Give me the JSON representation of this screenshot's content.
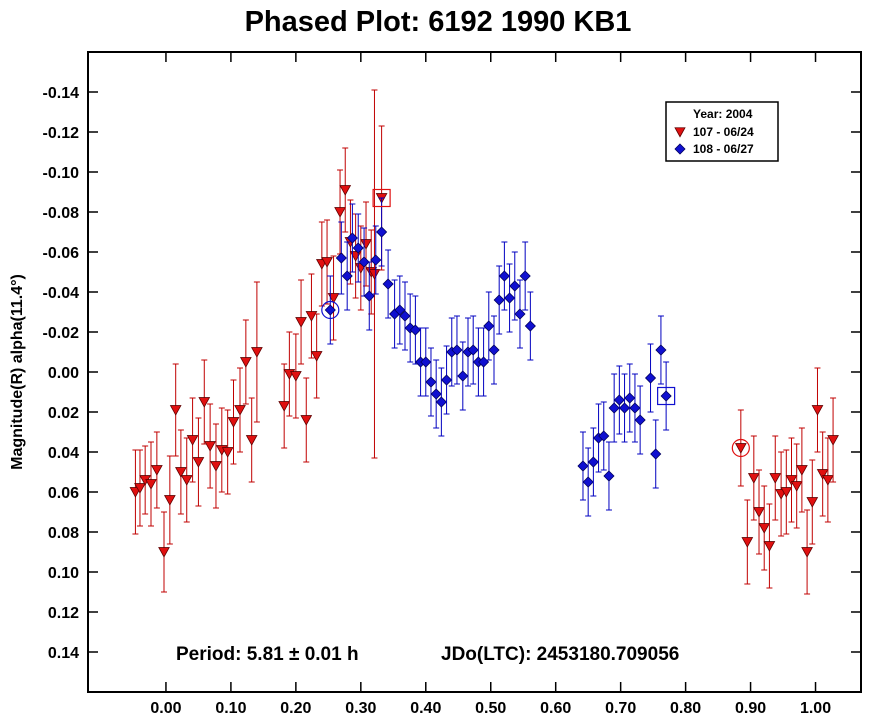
{
  "chart_data": {
    "type": "scatter",
    "title": "Phased Plot: 6192 1990 KB1",
    "xlabel": "",
    "ylabel": "Magnitude(R) alpha(11.4°)",
    "xlim": [
      -0.12,
      1.07
    ],
    "ylim": [
      0.16,
      -0.16
    ],
    "y_inverted": true,
    "x_ticks": [
      0.0,
      0.1,
      0.2,
      0.3,
      0.4,
      0.5,
      0.6,
      0.7,
      0.8,
      0.9,
      1.0
    ],
    "x_tick_labels": [
      "0.00",
      "0.10",
      "0.20",
      "0.30",
      "0.40",
      "0.50",
      "0.60",
      "0.70",
      "0.80",
      "0.90",
      "1.00"
    ],
    "y_ticks": [
      -0.14,
      -0.12,
      -0.1,
      -0.08,
      -0.06,
      -0.04,
      -0.02,
      0.0,
      0.02,
      0.04,
      0.06,
      0.08,
      0.1,
      0.12,
      0.14
    ],
    "y_tick_labels": [
      "-0.14",
      "-0.12",
      "-0.10",
      "-0.08",
      "-0.06",
      "-0.04",
      "-0.02",
      "0.00",
      "0.02",
      "0.04",
      "0.06",
      "0.08",
      "0.10",
      "0.12",
      "0.14"
    ],
    "grid": false,
    "legend": {
      "position": "top-right",
      "title": "Year: 2004",
      "entries": [
        "107 - 06/24",
        "108 - 06/27"
      ]
    },
    "annotations": {
      "period": "Period: 5.81 ± 0.01 h",
      "epoch": "JDo(LTC): 2453180.709056"
    },
    "colors": {
      "series1": "#e01010",
      "series2": "#1010d0",
      "errbar1": "#c00000",
      "errbar2": "#0000c0"
    },
    "series": [
      {
        "name": "107 - 06/24",
        "marker": "triangle-down",
        "points": [
          {
            "x": -0.047,
            "y": 0.06,
            "e": 0.021
          },
          {
            "x": -0.04,
            "y": 0.058,
            "e": 0.019
          },
          {
            "x": -0.032,
            "y": 0.054,
            "e": 0.017
          },
          {
            "x": -0.023,
            "y": 0.056,
            "e": 0.021
          },
          {
            "x": -0.014,
            "y": 0.049,
            "e": 0.019
          },
          {
            "x": -0.003,
            "y": 0.09,
            "e": 0.02
          },
          {
            "x": 0.006,
            "y": 0.064,
            "e": 0.022
          },
          {
            "x": 0.015,
            "y": 0.019,
            "e": 0.023
          },
          {
            "x": 0.023,
            "y": 0.05,
            "e": 0.021
          },
          {
            "x": 0.032,
            "y": 0.054,
            "e": 0.021
          },
          {
            "x": 0.041,
            "y": 0.034,
            "e": 0.021
          },
          {
            "x": 0.05,
            "y": 0.045,
            "e": 0.022
          },
          {
            "x": 0.059,
            "y": 0.015,
            "e": 0.021
          },
          {
            "x": 0.068,
            "y": 0.037,
            "e": 0.021
          },
          {
            "x": 0.077,
            "y": 0.047,
            "e": 0.021
          },
          {
            "x": 0.086,
            "y": 0.039,
            "e": 0.021
          },
          {
            "x": 0.095,
            "y": 0.04,
            "e": 0.021
          },
          {
            "x": 0.104,
            "y": 0.025,
            "e": 0.021
          },
          {
            "x": 0.114,
            "y": 0.019,
            "e": 0.021
          },
          {
            "x": 0.123,
            "y": -0.005,
            "e": 0.021
          },
          {
            "x": 0.132,
            "y": 0.034,
            "e": 0.021
          },
          {
            "x": 0.14,
            "y": -0.01,
            "e": 0.035
          },
          {
            "x": 0.182,
            "y": 0.017,
            "e": 0.021
          },
          {
            "x": 0.19,
            "y": 0.001,
            "e": 0.021
          },
          {
            "x": 0.2,
            "y": 0.002,
            "e": 0.021
          },
          {
            "x": 0.208,
            "y": -0.025,
            "e": 0.021
          },
          {
            "x": 0.216,
            "y": 0.024,
            "e": 0.021
          },
          {
            "x": 0.224,
            "y": -0.028,
            "e": 0.021
          },
          {
            "x": 0.232,
            "y": -0.008,
            "e": 0.021
          },
          {
            "x": 0.24,
            "y": -0.054,
            "e": 0.021
          },
          {
            "x": 0.248,
            "y": -0.055,
            "e": 0.021
          },
          {
            "x": 0.258,
            "y": -0.037,
            "e": 0.021
          },
          {
            "x": 0.268,
            "y": -0.08,
            "e": 0.021
          },
          {
            "x": 0.276,
            "y": -0.091,
            "e": 0.021
          },
          {
            "x": 0.284,
            "y": -0.065,
            "e": 0.021
          },
          {
            "x": 0.292,
            "y": -0.058,
            "e": 0.021
          },
          {
            "x": 0.3,
            "y": -0.052,
            "e": 0.021
          },
          {
            "x": 0.308,
            "y": -0.064,
            "e": 0.021
          },
          {
            "x": 0.316,
            "y": -0.05,
            "e": 0.021
          },
          {
            "x": 0.321,
            "y": -0.049,
            "e": 0.092
          },
          {
            "x": 0.332,
            "y": -0.087,
            "e": 0.036
          },
          {
            "x": 0.885,
            "y": 0.038,
            "e": 0.019
          },
          {
            "x": 0.895,
            "y": 0.085,
            "e": 0.021
          },
          {
            "x": 0.905,
            "y": 0.053,
            "e": 0.021
          },
          {
            "x": 0.913,
            "y": 0.07,
            "e": 0.021
          },
          {
            "x": 0.921,
            "y": 0.078,
            "e": 0.021
          },
          {
            "x": 0.929,
            "y": 0.087,
            "e": 0.021
          },
          {
            "x": 0.938,
            "y": 0.053,
            "e": 0.021
          },
          {
            "x": 0.947,
            "y": 0.061,
            "e": 0.021
          },
          {
            "x": 0.955,
            "y": 0.06,
            "e": 0.021
          },
          {
            "x": 0.963,
            "y": 0.054,
            "e": 0.021
          },
          {
            "x": 0.971,
            "y": 0.057,
            "e": 0.021
          },
          {
            "x": 0.979,
            "y": 0.049,
            "e": 0.021
          },
          {
            "x": 0.987,
            "y": 0.09,
            "e": 0.021
          },
          {
            "x": 0.995,
            "y": 0.065,
            "e": 0.021
          },
          {
            "x": 1.003,
            "y": 0.019,
            "e": 0.021
          },
          {
            "x": 1.011,
            "y": 0.051,
            "e": 0.021
          },
          {
            "x": 1.019,
            "y": 0.054,
            "e": 0.021
          },
          {
            "x": 1.027,
            "y": 0.034,
            "e": 0.021
          }
        ]
      },
      {
        "name": "108 - 06/27",
        "marker": "diamond",
        "points": [
          {
            "x": 0.253,
            "y": -0.031,
            "e": 0.017
          },
          {
            "x": 0.27,
            "y": -0.057,
            "e": 0.018
          },
          {
            "x": 0.279,
            "y": -0.048,
            "e": 0.017
          },
          {
            "x": 0.287,
            "y": -0.067,
            "e": 0.017
          },
          {
            "x": 0.296,
            "y": -0.062,
            "e": 0.017
          },
          {
            "x": 0.305,
            "y": -0.055,
            "e": 0.017
          },
          {
            "x": 0.313,
            "y": -0.038,
            "e": 0.017
          },
          {
            "x": 0.323,
            "y": -0.056,
            "e": 0.017
          },
          {
            "x": 0.332,
            "y": -0.07,
            "e": 0.017
          },
          {
            "x": 0.342,
            "y": -0.044,
            "e": 0.017
          },
          {
            "x": 0.352,
            "y": -0.029,
            "e": 0.017
          },
          {
            "x": 0.36,
            "y": -0.031,
            "e": 0.017
          },
          {
            "x": 0.368,
            "y": -0.028,
            "e": 0.017
          },
          {
            "x": 0.376,
            "y": -0.022,
            "e": 0.017
          },
          {
            "x": 0.384,
            "y": -0.021,
            "e": 0.017
          },
          {
            "x": 0.392,
            "y": -0.005,
            "e": 0.017
          },
          {
            "x": 0.4,
            "y": -0.005,
            "e": 0.017
          },
          {
            "x": 0.408,
            "y": 0.005,
            "e": 0.017
          },
          {
            "x": 0.416,
            "y": 0.011,
            "e": 0.017
          },
          {
            "x": 0.424,
            "y": 0.015,
            "e": 0.017
          },
          {
            "x": 0.432,
            "y": 0.004,
            "e": 0.017
          },
          {
            "x": 0.44,
            "y": -0.01,
            "e": 0.017
          },
          {
            "x": 0.448,
            "y": -0.011,
            "e": 0.017
          },
          {
            "x": 0.457,
            "y": 0.002,
            "e": 0.017
          },
          {
            "x": 0.465,
            "y": -0.01,
            "e": 0.017
          },
          {
            "x": 0.473,
            "y": -0.011,
            "e": 0.017
          },
          {
            "x": 0.481,
            "y": -0.005,
            "e": 0.017
          },
          {
            "x": 0.489,
            "y": -0.005,
            "e": 0.017
          },
          {
            "x": 0.497,
            "y": -0.023,
            "e": 0.017
          },
          {
            "x": 0.505,
            "y": -0.011,
            "e": 0.017
          },
          {
            "x": 0.513,
            "y": -0.036,
            "e": 0.017
          },
          {
            "x": 0.521,
            "y": -0.048,
            "e": 0.017
          },
          {
            "x": 0.529,
            "y": -0.037,
            "e": 0.017
          },
          {
            "x": 0.537,
            "y": -0.043,
            "e": 0.017
          },
          {
            "x": 0.545,
            "y": -0.029,
            "e": 0.017
          },
          {
            "x": 0.553,
            "y": -0.048,
            "e": 0.017
          },
          {
            "x": 0.561,
            "y": -0.023,
            "e": 0.017
          },
          {
            "x": 0.642,
            "y": 0.047,
            "e": 0.017
          },
          {
            "x": 0.65,
            "y": 0.055,
            "e": 0.017
          },
          {
            "x": 0.658,
            "y": 0.045,
            "e": 0.017
          },
          {
            "x": 0.666,
            "y": 0.033,
            "e": 0.017
          },
          {
            "x": 0.674,
            "y": 0.032,
            "e": 0.017
          },
          {
            "x": 0.682,
            "y": 0.052,
            "e": 0.017
          },
          {
            "x": 0.69,
            "y": 0.018,
            "e": 0.017
          },
          {
            "x": 0.698,
            "y": 0.014,
            "e": 0.017
          },
          {
            "x": 0.706,
            "y": 0.018,
            "e": 0.017
          },
          {
            "x": 0.714,
            "y": 0.013,
            "e": 0.017
          },
          {
            "x": 0.722,
            "y": 0.018,
            "e": 0.017
          },
          {
            "x": 0.73,
            "y": 0.024,
            "e": 0.017
          },
          {
            "x": 0.746,
            "y": 0.003,
            "e": 0.017
          },
          {
            "x": 0.754,
            "y": 0.041,
            "e": 0.017
          },
          {
            "x": 0.762,
            "y": -0.011,
            "e": 0.017
          },
          {
            "x": 0.77,
            "y": 0.012,
            "e": 0.017
          }
        ]
      }
    ],
    "highlighted_points": [
      {
        "series": "107 - 06/24",
        "x": 0.332,
        "y": -0.087,
        "shape": "square"
      },
      {
        "series": "108 - 06/27",
        "x": 0.253,
        "y": -0.031,
        "shape": "circle"
      },
      {
        "series": "108 - 06/27",
        "x": 0.77,
        "y": 0.012,
        "shape": "square"
      },
      {
        "series": "107 - 06/24",
        "x": 0.885,
        "y": 0.038,
        "shape": "circle"
      }
    ]
  }
}
